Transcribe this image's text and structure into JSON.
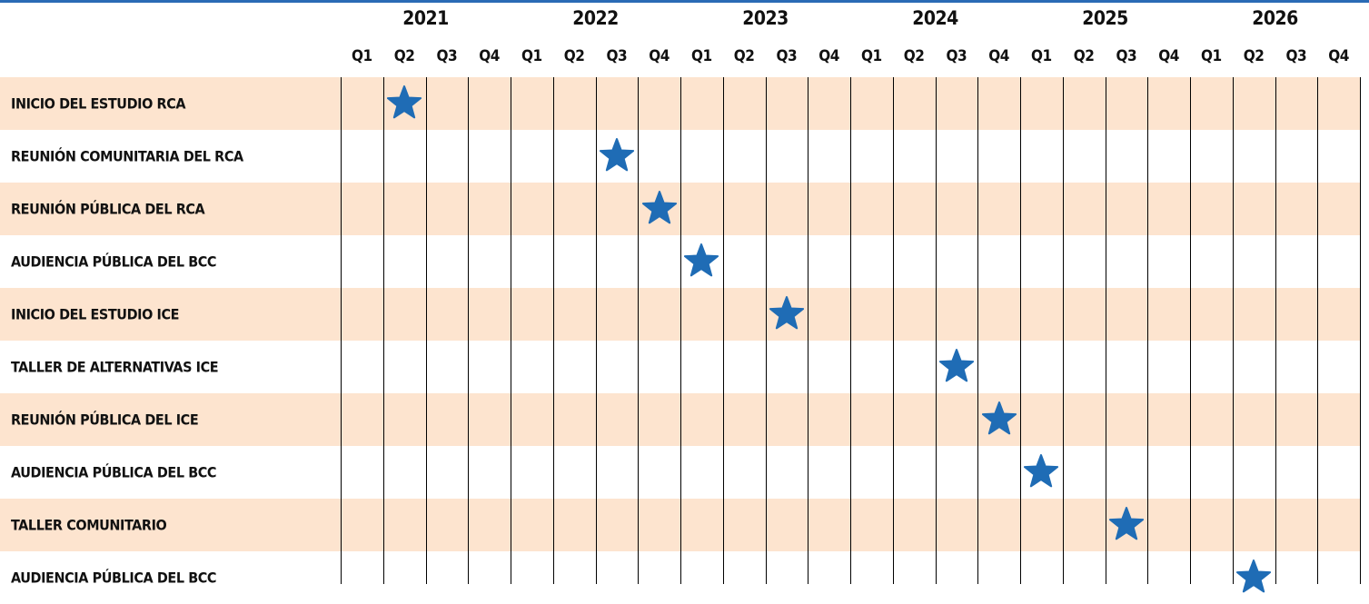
{
  "colors": {
    "band": "#fde4cf",
    "star": "#1f6cb5",
    "top_rule": "#2a6bb5",
    "grid": "#000000"
  },
  "chart_data": {
    "type": "timeline",
    "title": "",
    "years": [
      "2021",
      "2022",
      "2023",
      "2024",
      "2025",
      "2026"
    ],
    "quarters": [
      "Q1",
      "Q2",
      "Q3",
      "Q4"
    ],
    "marker_icon": "star-icon",
    "milestones": [
      {
        "label": "INICIO DEL ESTUDIO RCA",
        "year": "2021",
        "quarter": "Q2"
      },
      {
        "label": "REUNIÓN COMUNITARIA DEL RCA",
        "year": "2022",
        "quarter": "Q3"
      },
      {
        "label": "REUNIÓN PÚBLICA DEL RCA",
        "year": "2022",
        "quarter": "Q4"
      },
      {
        "label": "AUDIENCIA PÚBLICA DEL BCC",
        "year": "2023",
        "quarter": "Q1"
      },
      {
        "label": "INICIO DEL ESTUDIO ICE",
        "year": "2023",
        "quarter": "Q3"
      },
      {
        "label": "TALLER DE ALTERNATIVAS ICE",
        "year": "2024",
        "quarter": "Q3"
      },
      {
        "label": "REUNIÓN PÚBLICA DEL ICE",
        "year": "2024",
        "quarter": "Q4"
      },
      {
        "label": "AUDIENCIA PÚBLICA DEL BCC",
        "year": "2025",
        "quarter": "Q1"
      },
      {
        "label": "TALLER COMUNITARIO",
        "year": "2025",
        "quarter": "Q3"
      },
      {
        "label": "AUDIENCIA PÚBLICA DEL BCC",
        "year": "2026",
        "quarter": "Q2"
      }
    ]
  }
}
